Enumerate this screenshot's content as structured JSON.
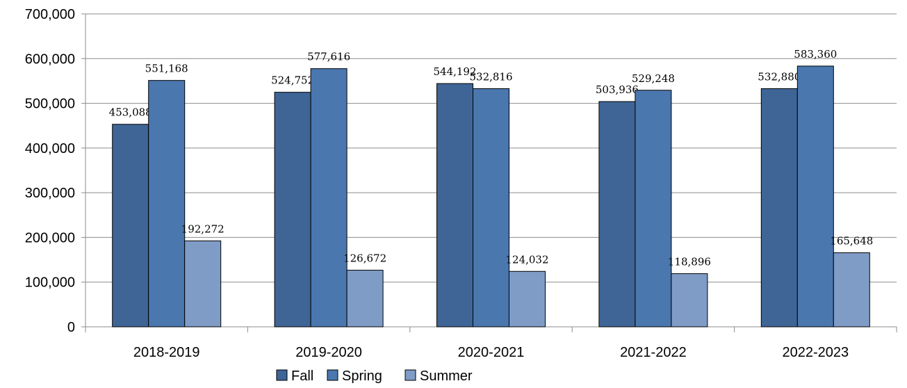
{
  "chart_data": {
    "type": "bar",
    "categories": [
      "2018-2019",
      "2019-2020",
      "2020-2021",
      "2021-2022",
      "2022-2023"
    ],
    "series": [
      {
        "name": "Fall",
        "color": "#3E6596",
        "values": [
          453088,
          524752,
          544192,
          503936,
          532880
        ]
      },
      {
        "name": "Spring",
        "color": "#4A77AE",
        "values": [
          551168,
          577616,
          532816,
          529248,
          583360
        ]
      },
      {
        "name": "Summer",
        "color": "#7F9CC7",
        "values": [
          192272,
          126672,
          124032,
          118896,
          165648
        ]
      }
    ],
    "data_labels": [
      [
        "453,088",
        "524,752",
        "544,192",
        "503,936",
        "532,880"
      ],
      [
        "551,168",
        "577,616",
        "532,816",
        "529,248",
        "583,360"
      ],
      [
        "192,272",
        "126,672",
        "124,032",
        "118,896",
        "165,648"
      ]
    ],
    "y_ticks": [
      0,
      100000,
      200000,
      300000,
      400000,
      500000,
      600000,
      700000
    ],
    "y_tick_labels": [
      "0",
      "100,000",
      "200,000",
      "300,000",
      "400,000",
      "500,000",
      "600,000",
      "700,000"
    ],
    "ylim": [
      0,
      700000
    ],
    "grid": true,
    "legend": {
      "position": "bottom"
    }
  }
}
